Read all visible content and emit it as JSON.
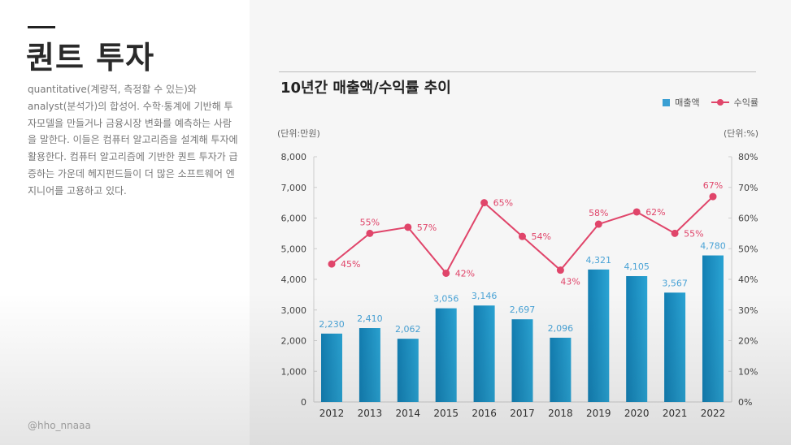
{
  "page": {
    "title": "퀀트 투자",
    "description": "quantitative(계량적, 측정할 수 있는)와 analyst(분석가)의 합성어. 수학·통계에 기반해 투자모델을 만들거나 금융시장 변화를 예측하는 사람을 말한다. 이들은 컴퓨터 알고리즘을 설계해 투자에 활용한다. 컴퓨터 알고리즘에 기반한 퀀트 투자가 급증하는 가운데 헤지펀드들이 더 많은 소프트웨어 엔지니어를 고용하고 있다.",
    "handle": "@hho_nnaaa"
  },
  "chart_data": {
    "type": "bar+line",
    "title": "10년간 매출액/수익률 추이",
    "categories": [
      "2012",
      "2013",
      "2014",
      "2015",
      "2016",
      "2017",
      "2018",
      "2019",
      "2020",
      "2021",
      "2022"
    ],
    "series": [
      {
        "name": "매출액",
        "type": "bar",
        "axis": "left",
        "color": "#1e8fc2",
        "values": [
          2230,
          2410,
          2062,
          3056,
          3146,
          2697,
          2096,
          4321,
          4105,
          3567,
          4780
        ],
        "labels": [
          "2,230",
          "2,410",
          "2,062",
          "3,056",
          "3,146",
          "2,697",
          "2,096",
          "4,321",
          "4,105",
          "3,567",
          "4,780"
        ]
      },
      {
        "name": "수익률",
        "type": "line",
        "axis": "right",
        "color": "#e0456a",
        "values": [
          45,
          55,
          57,
          42,
          65,
          54,
          43,
          58,
          62,
          55,
          67
        ],
        "labels": [
          "45%",
          "55%",
          "57%",
          "42%",
          "65%",
          "54%",
          "43%",
          "58%",
          "62%",
          "55%",
          "67%"
        ]
      }
    ],
    "left_axis": {
      "unit_label": "(단위:만원)",
      "range": [
        0,
        8000
      ],
      "ticks": [
        "0",
        "1,000",
        "2,000",
        "3,000",
        "4,000",
        "5,000",
        "6,000",
        "7,000",
        "8,000"
      ]
    },
    "right_axis": {
      "unit_label": "(단위:%)",
      "range": [
        0,
        80
      ],
      "ticks": [
        "0%",
        "10%",
        "20%",
        "30%",
        "40%",
        "50%",
        "60%",
        "70%",
        "80%"
      ]
    },
    "grid": false,
    "legend_placement": "top-right"
  }
}
